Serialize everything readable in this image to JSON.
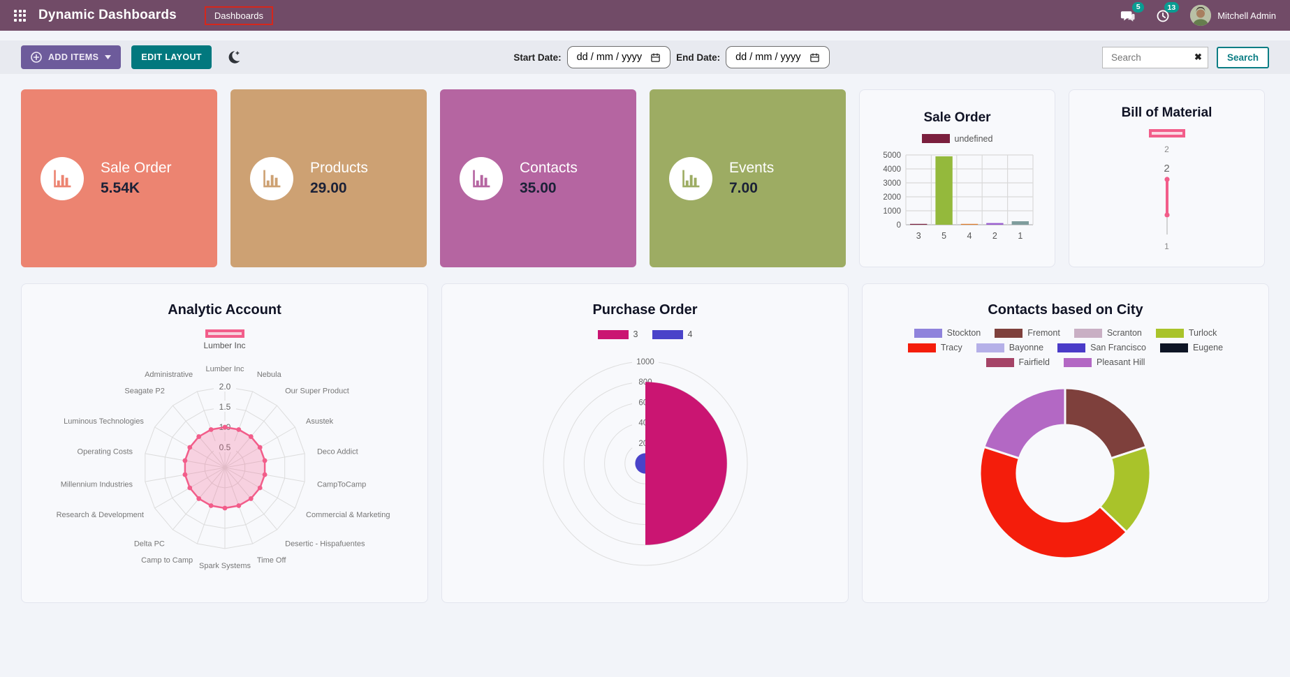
{
  "header": {
    "app_title": "Dynamic Dashboards",
    "menu_dashboards": "Dashboards",
    "messages_badge": "5",
    "activities_badge": "13",
    "user_name": "Mitchell Admin"
  },
  "toolbar": {
    "add_items": "ADD ITEMS",
    "edit_layout": "EDIT LAYOUT",
    "start_date_label": "Start Date:",
    "end_date_label": "End Date:",
    "date_placeholder": "dd / mm / yyyy",
    "search_placeholder": "Search",
    "search_button": "Search"
  },
  "kpi_tiles": [
    {
      "label": "Sale Order",
      "value": "5.54K",
      "color": "#ec8471"
    },
    {
      "label": "Products",
      "value": "29.00",
      "color": "#cda173"
    },
    {
      "label": "Contacts",
      "value": "35.00",
      "color": "#b565a1"
    },
    {
      "label": "Events",
      "value": "7.00",
      "color": "#9dac63"
    }
  ],
  "chart_data": [
    {
      "id": "sale-order-bar",
      "type": "bar",
      "title": "Sale Order",
      "legend": [
        {
          "label": "undefined",
          "color": "#7b1f3e"
        }
      ],
      "categories": [
        "3",
        "5",
        "4",
        "2",
        "1"
      ],
      "values": [
        40,
        4900,
        30,
        120,
        250
      ],
      "bar_colors": [
        "#7b1f3e",
        "#94b93c",
        "#e07b28",
        "#9b5fd0",
        "#7f9d9d"
      ],
      "ylim": [
        0,
        5000
      ],
      "yticks": [
        0,
        1000,
        2000,
        3000,
        4000,
        5000
      ],
      "grid": true
    },
    {
      "id": "bill-of-material",
      "type": "vertical-line",
      "title": "Bill of Material",
      "legend_border": "#f25d8a",
      "legend_fill": "#fbd9e3",
      "axis_labels": [
        "2",
        "2",
        "1"
      ],
      "line_color": "#f25d8a"
    },
    {
      "id": "analytic-account",
      "type": "radar",
      "title": "Analytic Account",
      "legend": [
        {
          "label": "Lumber Inc",
          "border": "#f25d8a",
          "fill": "#f7d2dd"
        }
      ],
      "categories": [
        "Lumber Inc",
        "Nebula",
        "Our Super Product",
        "Asustek",
        "Deco Addict",
        "CampToCamp",
        "Commercial & Marketing",
        "Desertic - Hispafuentes",
        "Time Off",
        "Spark Systems",
        "Camp to Camp",
        "Delta PC",
        "Research & Development",
        "Millennium Industries",
        "Operating Costs",
        "Luminous Technologies",
        "Seagate P2",
        "Administrative"
      ],
      "values": [
        1,
        1,
        1,
        1,
        1,
        1,
        1,
        1,
        1,
        1,
        1,
        1,
        1,
        1,
        1,
        1,
        1,
        1
      ],
      "ticks": [
        "0.5",
        "1.0",
        "1.5",
        "2.0"
      ],
      "rmax": 2,
      "line_color": "#f25d8a",
      "fill_color": "rgba(242,93,138,0.25)",
      "grid": true
    },
    {
      "id": "purchase-order",
      "type": "polar-area",
      "title": "Purchase Order",
      "rings": [
        200,
        400,
        600,
        800,
        1000
      ],
      "rmax": 1000,
      "series": [
        {
          "label": "3",
          "value": 800,
          "color": "#ca1572"
        },
        {
          "label": "4",
          "value": 100,
          "color": "#4a43c9"
        }
      ]
    },
    {
      "id": "contacts-city",
      "type": "doughnut",
      "title": "Contacts based on City",
      "legend_rows": [
        4,
        4,
        2
      ],
      "series": [
        {
          "label": "Stockton",
          "value": 0,
          "color": "#8f83dc"
        },
        {
          "label": "Fremont",
          "value": 7,
          "color": "#7e403c"
        },
        {
          "label": "Scranton",
          "value": 0,
          "color": "#c9afc4"
        },
        {
          "label": "Turlock",
          "value": 6,
          "color": "#a9c32a"
        },
        {
          "label": "Tracy",
          "value": 15,
          "color": "#f41d0b"
        },
        {
          "label": "Bayonne",
          "value": 0,
          "color": "#b5b0e8"
        },
        {
          "label": "San Francisco",
          "value": 0,
          "color": "#4a3bc8"
        },
        {
          "label": "Eugene",
          "value": 0,
          "color": "#0e1525"
        },
        {
          "label": "Fairfield",
          "value": 0,
          "color": "#a54467"
        },
        {
          "label": "Pleasant Hill",
          "value": 7,
          "color": "#b368c4"
        }
      ]
    }
  ]
}
